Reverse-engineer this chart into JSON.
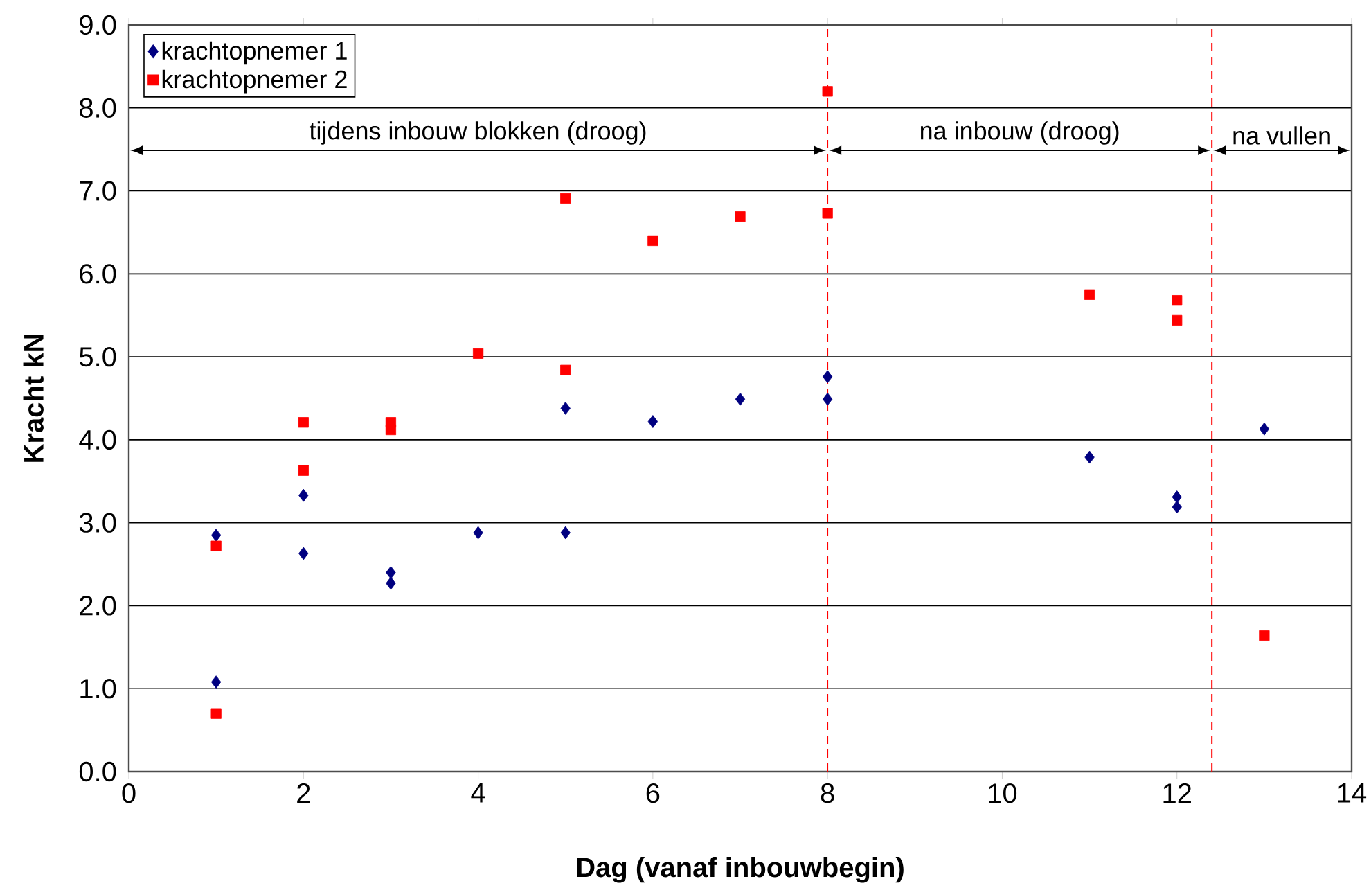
{
  "chart_data": {
    "type": "scatter",
    "xlabel": "Dag (vanaf inbouwbegin)",
    "ylabel": "Kracht kN",
    "xlim": [
      0,
      14
    ],
    "xticks": [
      0,
      2,
      4,
      6,
      8,
      10,
      12,
      14
    ],
    "ylim": [
      0,
      9
    ],
    "yticks": [
      {
        "value": 0,
        "label": "0.0"
      },
      {
        "value": 1,
        "label": "1.0"
      },
      {
        "value": 2,
        "label": "2.0"
      },
      {
        "value": 3,
        "label": "3.0"
      },
      {
        "value": 4,
        "label": "4.0"
      },
      {
        "value": 5,
        "label": "5.0"
      },
      {
        "value": 6,
        "label": "6.0"
      },
      {
        "value": 7,
        "label": "7.0"
      },
      {
        "value": 8,
        "label": "8.0"
      },
      {
        "value": 9,
        "label": "9.0"
      }
    ],
    "grid": "y",
    "legend": "top left",
    "series": [
      {
        "name": "krachtopnemer 1",
        "color": "#000080",
        "marker": "diamond",
        "x": [
          1,
          1,
          2,
          2,
          3,
          3,
          4,
          5,
          5,
          6,
          7,
          8,
          8,
          11,
          12,
          12,
          13
        ],
        "values": [
          2.85,
          1.08,
          3.33,
          2.63,
          2.4,
          2.27,
          2.88,
          4.38,
          2.88,
          4.22,
          4.49,
          4.76,
          4.49,
          3.79,
          3.31,
          3.19,
          4.13
        ]
      },
      {
        "name": "krachtopnemer 2",
        "color": "#ff0000",
        "marker": "square",
        "x": [
          1,
          1,
          2,
          2,
          3,
          3,
          4,
          5,
          5,
          6,
          7,
          8,
          8,
          11,
          12,
          12,
          13
        ],
        "values": [
          2.72,
          0.7,
          4.21,
          3.63,
          4.21,
          4.12,
          5.04,
          6.91,
          4.84,
          6.4,
          6.69,
          8.2,
          6.73,
          5.75,
          5.68,
          5.44,
          1.64
        ]
      }
    ],
    "ref_lines": [
      {
        "axis": "x",
        "value": 8,
        "color": "#ff0000",
        "line_style": "dashed"
      },
      {
        "axis": "x",
        "value": 12.4,
        "color": "#ff0000",
        "line_style": "dashed"
      }
    ],
    "annotations": [
      "tijdens inbouw blokken (droog)",
      "na inbouw (droog)",
      "na vullen"
    ]
  }
}
